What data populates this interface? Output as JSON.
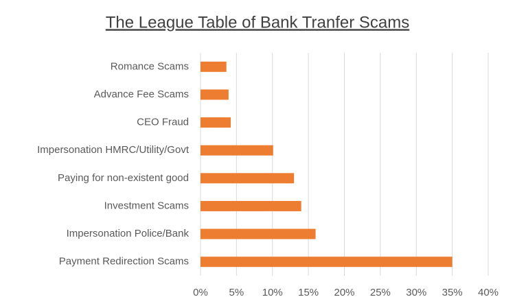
{
  "chart_data": {
    "type": "bar",
    "orientation": "horizontal",
    "title": "The League Table of Bank Tranfer Scams",
    "categories": [
      "Romance Scams",
      "Advance Fee Scams",
      "CEO Fraud",
      "Impersonation HMRC/Utility/Govt",
      "Paying for non-existent good",
      "Investment Scams",
      "Impersonation Police/Bank",
      "Payment Redirection Scams"
    ],
    "values": [
      3.6,
      3.9,
      4.2,
      10.1,
      13,
      14,
      16,
      35
    ],
    "color": "#ed7d31",
    "xlim": [
      0,
      40
    ],
    "xticks": [
      {
        "value": 0,
        "label": "0%"
      },
      {
        "value": 5,
        "label": "5%"
      },
      {
        "value": 10,
        "label": "10%"
      },
      {
        "value": 15,
        "label": "15%"
      },
      {
        "value": 20,
        "label": "20%"
      },
      {
        "value": 25,
        "label": "25%"
      },
      {
        "value": 30,
        "label": "30%"
      },
      {
        "value": 35,
        "label": "35%"
      },
      {
        "value": 40,
        "label": "40%"
      }
    ],
    "grid": true
  }
}
